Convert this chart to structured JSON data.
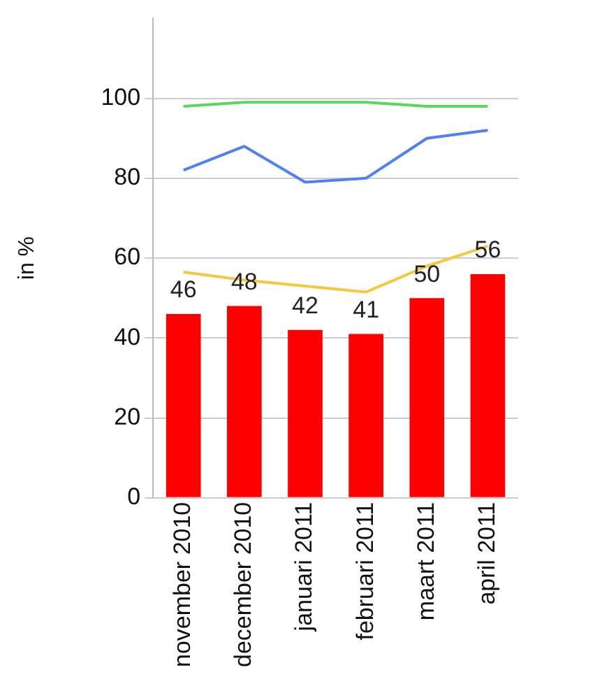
{
  "chart_data": {
    "type": "bar",
    "ylabel": "in %",
    "categories": [
      "november 2010",
      "december 2010",
      "januari 2011",
      "februari 2011",
      "maart 2011",
      "april 2011"
    ],
    "series": [
      {
        "color": "#ff0000",
        "values": [
          46,
          48,
          42,
          41,
          50,
          56
        ],
        "data_labels": true
      },
      {
        "type": "line",
        "color": "#5cd65c",
        "values": [
          98,
          99,
          99,
          99,
          98,
          98
        ]
      },
      {
        "type": "line",
        "color": "#4f81f5",
        "values": [
          82,
          88,
          79,
          80,
          90,
          92
        ]
      },
      {
        "type": "line",
        "color": "#f5c842",
        "values": [
          56.5,
          54.5,
          53,
          51.5,
          58,
          63
        ]
      }
    ],
    "ylim": [
      0,
      120
    ],
    "yticks": [
      0,
      20,
      40,
      60,
      80,
      100
    ],
    "grid": "y",
    "legend": false,
    "marker": "none"
  }
}
